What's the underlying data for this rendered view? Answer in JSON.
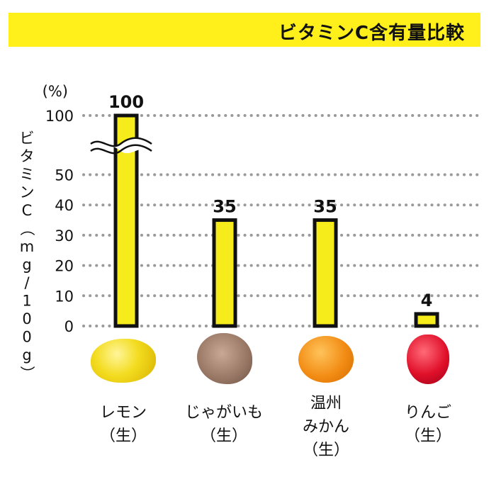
{
  "title": "ビタミンC含有量比較",
  "chart_data": {
    "type": "bar",
    "categories": [
      "レモン",
      "じゃがいも",
      "温州みかん",
      "りんご"
    ],
    "category_lines": [
      [
        "レモン",
        "（生）"
      ],
      [
        "じゃがいも",
        "（生）"
      ],
      [
        "温州",
        "みかん",
        "（生）"
      ],
      [
        "りんご",
        "（生）"
      ]
    ],
    "values": [
      100,
      35,
      35,
      4
    ],
    "value_labels": [
      "100",
      "35",
      "35",
      "4"
    ],
    "yticks": [
      "0",
      "10",
      "20",
      "30",
      "40",
      "50",
      "100"
    ],
    "y_unit": "(%)",
    "ylabel": "ビタミンC（mg/100g）",
    "axis_break": true,
    "grid": true,
    "bar_color": "#f6ec1c",
    "bar_outline": "#111111"
  },
  "images": [
    "lemon",
    "potato",
    "mandarin-orange",
    "apple"
  ]
}
